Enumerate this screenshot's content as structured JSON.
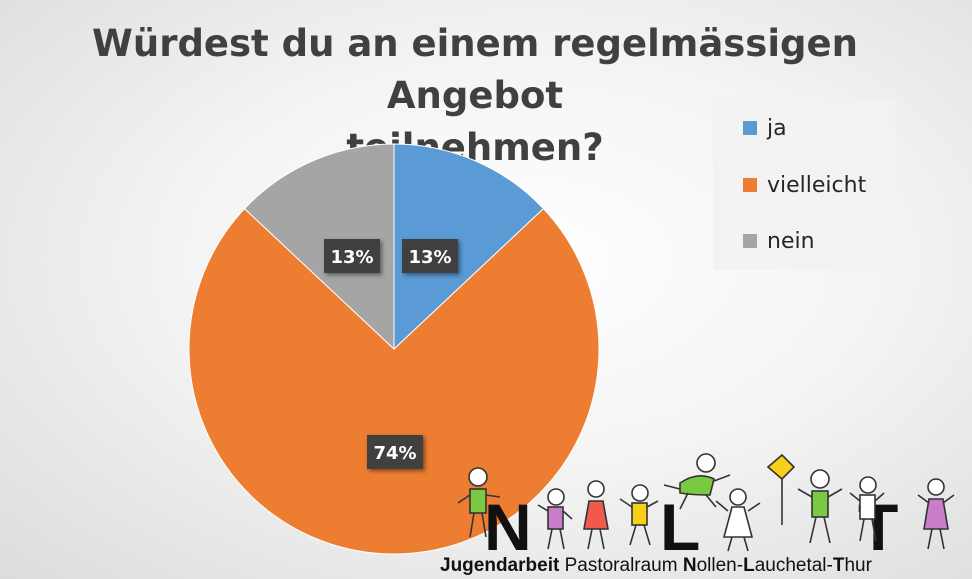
{
  "chart_data": {
    "type": "pie",
    "title_lines": [
      "Würdest du an einem regelmässigen Angebot",
      "teilnehmen?"
    ],
    "categories": [
      "ja",
      "vielleicht",
      "nein"
    ],
    "values": [
      13,
      74,
      13
    ],
    "data_labels": [
      "13%",
      "74%",
      "13%"
    ],
    "colors": [
      "#5B9BD5",
      "#ED7D31",
      "#A5A5A5"
    ],
    "legend_position": "top-right",
    "start_angle_deg": 0,
    "direction": "clockwise"
  },
  "footer": {
    "parts": [
      {
        "text": "Jugendarbeit",
        "bold": true
      },
      {
        "text": " Pastoralraum ",
        "bold": false
      },
      {
        "text": "N",
        "bold": true
      },
      {
        "text": "ollen-",
        "bold": false
      },
      {
        "text": "L",
        "bold": true
      },
      {
        "text": "auchetal-",
        "bold": false
      },
      {
        "text": "T",
        "bold": true
      },
      {
        "text": "hur",
        "bold": false
      }
    ]
  },
  "logo": {
    "letters": [
      "N",
      "L",
      "T"
    ],
    "description_icon": "stick-figure-kids-logo"
  }
}
